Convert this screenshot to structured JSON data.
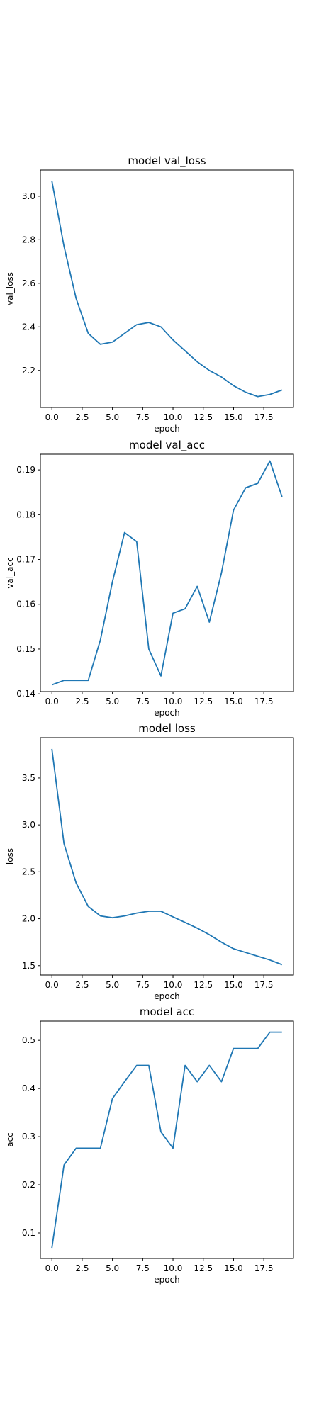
{
  "colors": {
    "series": "#1f77b4",
    "axes": "#000000",
    "background": "#ffffff"
  },
  "chart_data": [
    {
      "type": "line",
      "title": "model val_loss",
      "xlabel": "epoch",
      "ylabel": "val_loss",
      "xlim": [
        -0.95,
        19.95
      ],
      "ylim": [
        2.03,
        3.12
      ],
      "xticks": [
        "0.0",
        "2.5",
        "5.0",
        "7.5",
        "10.0",
        "12.5",
        "15.0",
        "17.5"
      ],
      "yticks": [
        "2.2",
        "2.4",
        "2.6",
        "2.8",
        "3.0"
      ],
      "grid": false,
      "series": [
        {
          "x": [
            0,
            1,
            2,
            3,
            4,
            5,
            6,
            7,
            8,
            9,
            10,
            11,
            12,
            13,
            14,
            15,
            16,
            17,
            18,
            19
          ],
          "values": [
            3.07,
            2.77,
            2.53,
            2.37,
            2.32,
            2.33,
            2.37,
            2.41,
            2.42,
            2.4,
            2.34,
            2.29,
            2.24,
            2.2,
            2.17,
            2.13,
            2.1,
            2.08,
            2.09,
            2.11
          ]
        }
      ]
    },
    {
      "type": "line",
      "title": "model val_acc",
      "xlabel": "epoch",
      "ylabel": "val_acc",
      "xlim": [
        -0.95,
        19.95
      ],
      "ylim": [
        0.1405,
        0.1935
      ],
      "xticks": [
        "0.0",
        "2.5",
        "5.0",
        "7.5",
        "10.0",
        "12.5",
        "15.0",
        "17.5"
      ],
      "yticks": [
        "0.14",
        "0.15",
        "0.16",
        "0.17",
        "0.18",
        "0.19"
      ],
      "grid": false,
      "series": [
        {
          "x": [
            0,
            1,
            2,
            3,
            4,
            5,
            6,
            7,
            8,
            9,
            10,
            11,
            12,
            13,
            14,
            15,
            16,
            17,
            18,
            19
          ],
          "values": [
            0.142,
            0.143,
            0.143,
            0.143,
            0.152,
            0.165,
            0.176,
            0.174,
            0.15,
            0.144,
            0.158,
            0.159,
            0.164,
            0.156,
            0.167,
            0.181,
            0.186,
            0.187,
            0.192,
            0.184
          ]
        }
      ]
    },
    {
      "type": "line",
      "title": "model loss",
      "xlabel": "epoch",
      "ylabel": "loss",
      "xlim": [
        -0.95,
        19.95
      ],
      "ylim": [
        1.4,
        3.93
      ],
      "xticks": [
        "0.0",
        "2.5",
        "5.0",
        "7.5",
        "10.0",
        "12.5",
        "15.0",
        "17.5"
      ],
      "yticks": [
        "1.5",
        "2.0",
        "2.5",
        "3.0",
        "3.5"
      ],
      "grid": false,
      "series": [
        {
          "x": [
            0,
            1,
            2,
            3,
            4,
            5,
            6,
            7,
            8,
            9,
            10,
            11,
            12,
            13,
            14,
            15,
            16,
            17,
            18,
            19
          ],
          "values": [
            3.81,
            2.8,
            2.38,
            2.13,
            2.03,
            2.01,
            2.03,
            2.06,
            2.08,
            2.08,
            2.02,
            1.96,
            1.9,
            1.83,
            1.75,
            1.68,
            1.64,
            1.6,
            1.56,
            1.51
          ]
        }
      ]
    },
    {
      "type": "line",
      "title": "model acc",
      "xlabel": "epoch",
      "ylabel": "acc",
      "xlim": [
        -0.95,
        19.95
      ],
      "ylim": [
        0.047,
        0.54
      ],
      "xticks": [
        "0.0",
        "2.5",
        "5.0",
        "7.5",
        "10.0",
        "12.5",
        "15.0",
        "17.5"
      ],
      "yticks": [
        "0.1",
        "0.2",
        "0.3",
        "0.4",
        "0.5"
      ],
      "grid": false,
      "series": [
        {
          "x": [
            0,
            1,
            2,
            3,
            4,
            5,
            6,
            7,
            8,
            9,
            10,
            11,
            12,
            13,
            14,
            15,
            16,
            17,
            18,
            19
          ],
          "values": [
            0.069,
            0.241,
            0.276,
            0.276,
            0.276,
            0.379,
            0.414,
            0.448,
            0.448,
            0.31,
            0.276,
            0.448,
            0.414,
            0.448,
            0.414,
            0.483,
            0.483,
            0.483,
            0.517,
            0.517
          ]
        }
      ]
    }
  ]
}
